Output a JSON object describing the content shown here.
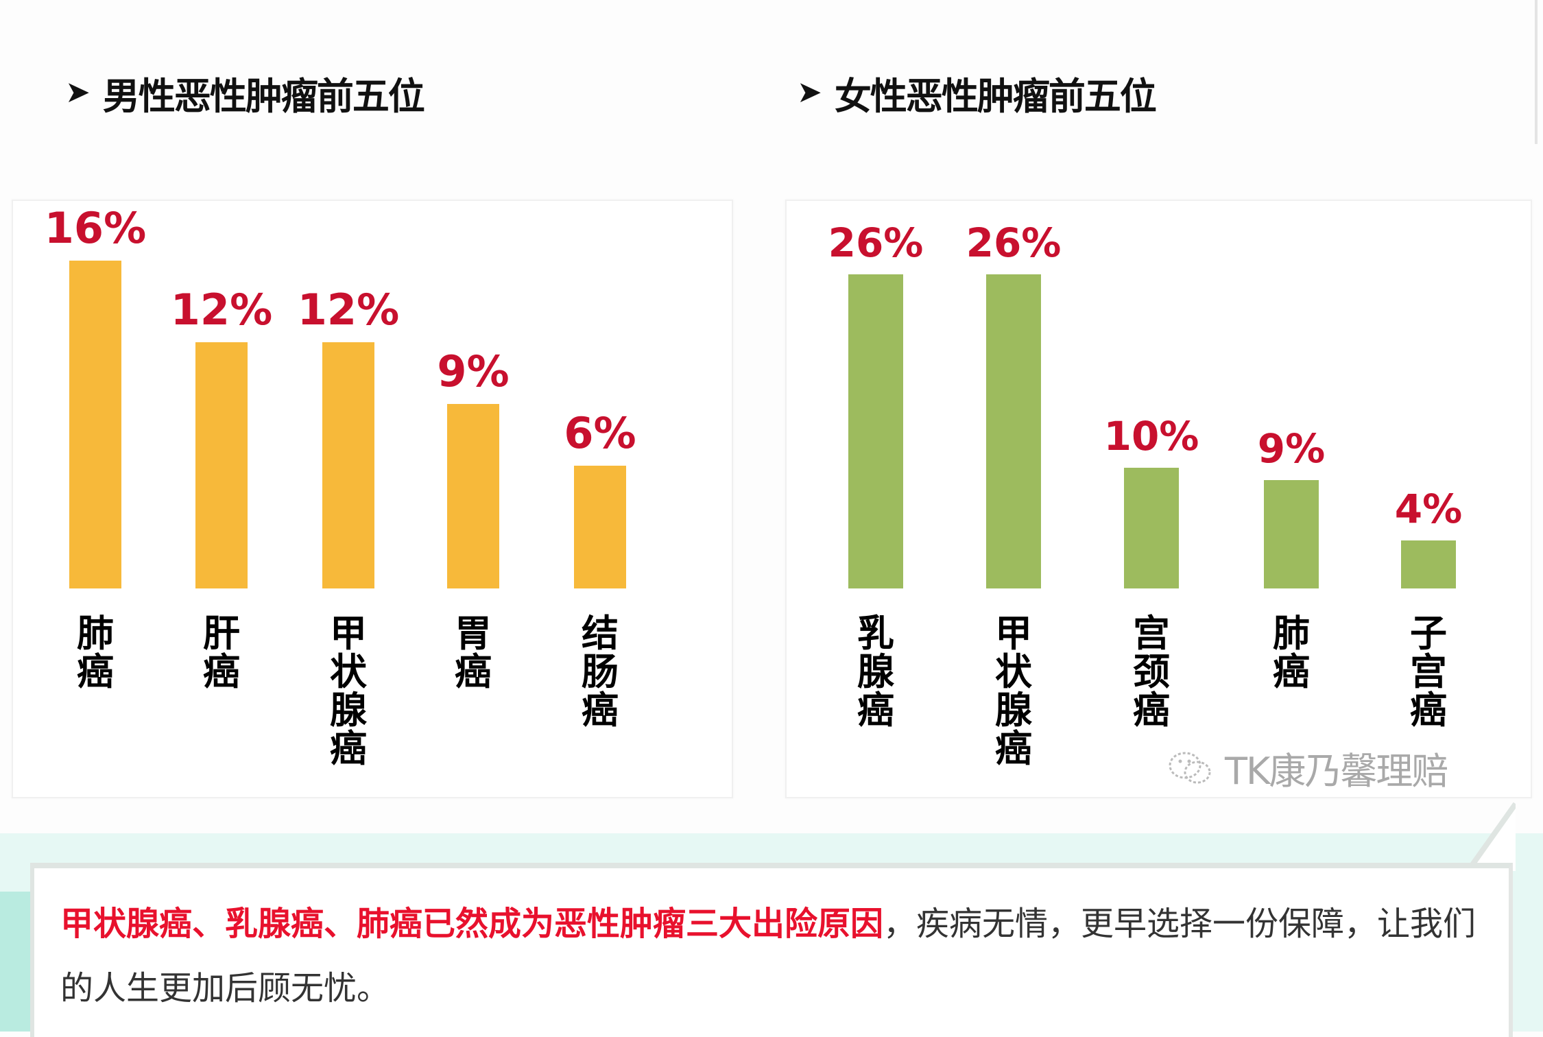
{
  "colors": {
    "male_bar": "#F7B93A",
    "female_bar": "#9DBB5E",
    "value_label": "#C8102E",
    "highlight_text": "#E8112D",
    "body_text": "#333333",
    "band_bg": "#E6F8F4"
  },
  "male": {
    "title_arrow": "➤",
    "title": "男性恶性肿瘤前五位"
  },
  "female": {
    "title_arrow": "➤",
    "title": "女性恶性肿瘤前五位"
  },
  "chart_data": [
    {
      "type": "bar",
      "title": "男性恶性肿瘤前五位",
      "categories": [
        "肺癌",
        "肝癌",
        "甲状腺癌",
        "胃癌",
        "结肠癌"
      ],
      "values": [
        16,
        12,
        12,
        9,
        6
      ],
      "value_labels": [
        "16%",
        "12%",
        "12%",
        "9%",
        "6%"
      ],
      "xlabel": "",
      "ylabel": "",
      "unit": "%",
      "grid": false,
      "legend": null,
      "color": "#F7B93A"
    },
    {
      "type": "bar",
      "title": "女性恶性肿瘤前五位",
      "categories": [
        "乳腺癌",
        "甲状腺癌",
        "宫颈癌",
        "肺癌",
        "子宫癌"
      ],
      "values": [
        26,
        26,
        10,
        9,
        4
      ],
      "value_labels": [
        "26%",
        "26%",
        "10%",
        "9%",
        "4%"
      ],
      "xlabel": "",
      "ylabel": "",
      "unit": "%",
      "grid": false,
      "legend": null,
      "color": "#9DBB5E"
    }
  ],
  "watermark": {
    "icon": "wechat-icon",
    "text": "TK康乃馨理赔"
  },
  "summary": {
    "highlight": "甲状腺癌、乳腺癌、肺癌已然成为恶性肿瘤三大出险原因",
    "rest": "，疾病无情，更早选择一份保障，让我们的人生更加后顾无忧。"
  }
}
